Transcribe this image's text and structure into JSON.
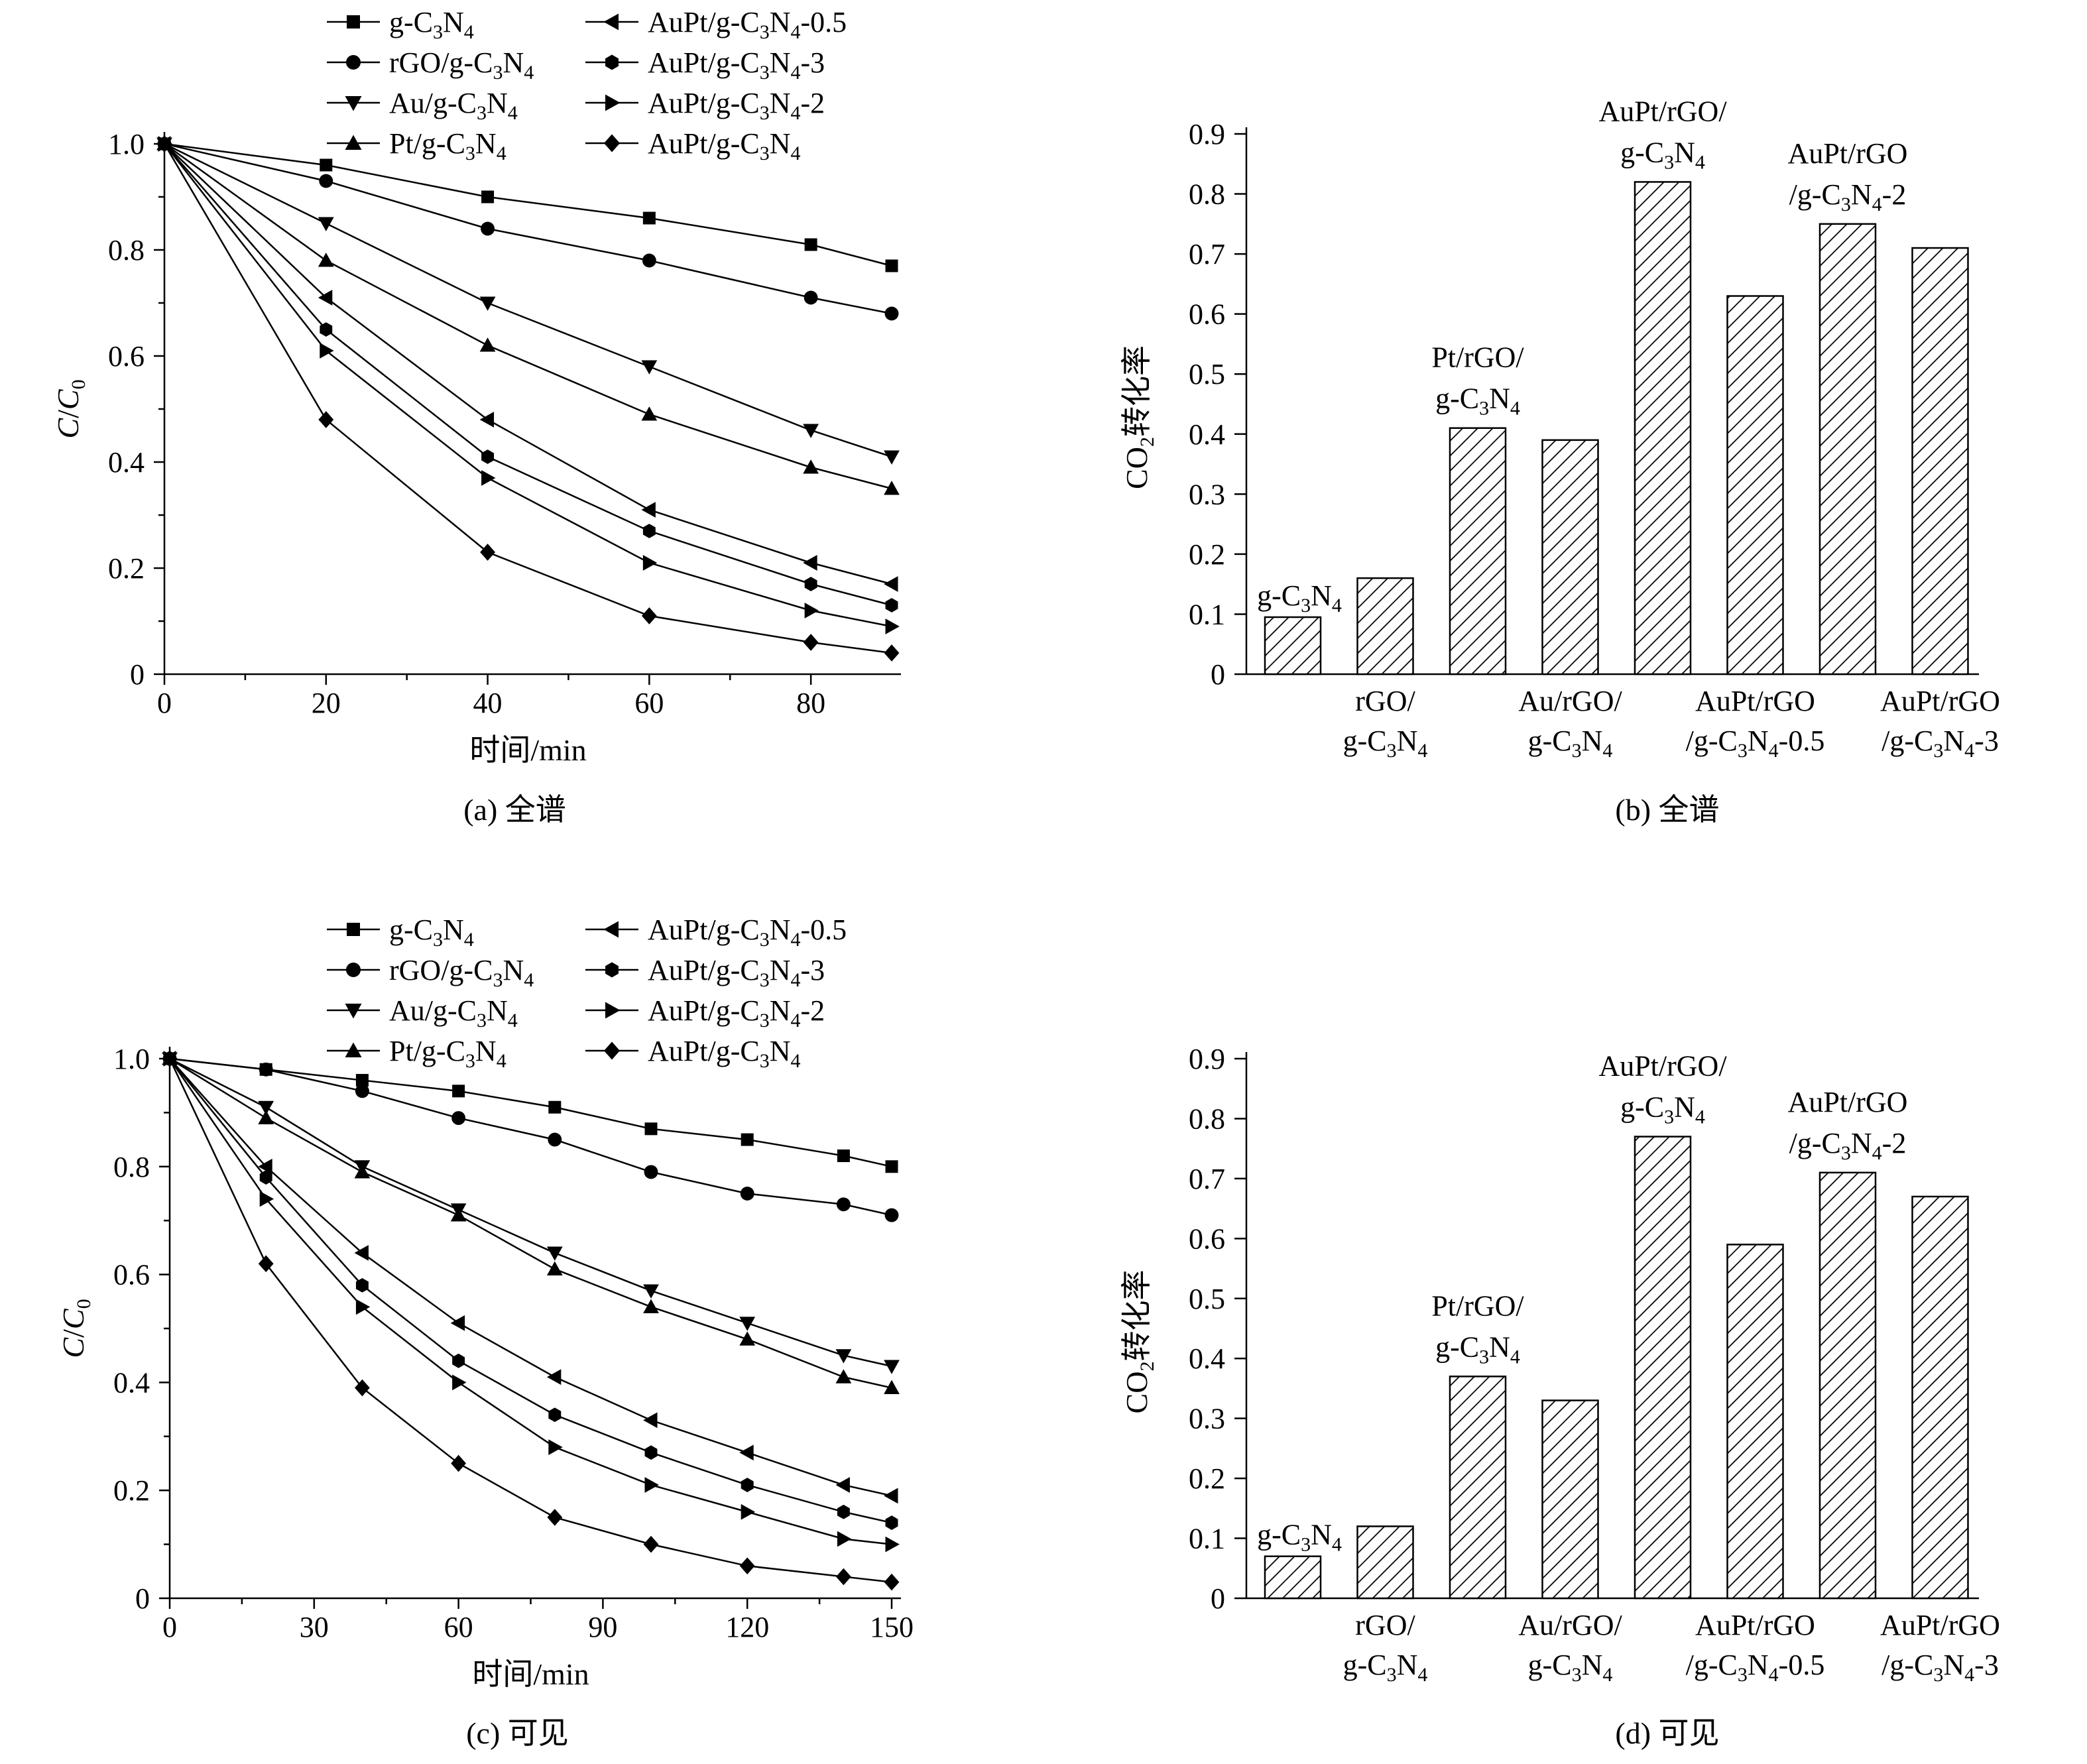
{
  "chart_data": [
    {
      "panel": "a",
      "type": "line",
      "caption": "(a) 全谱",
      "xlabel": "时间/min",
      "ylabel": "C/C0",
      "xlim": [
        0,
        90
      ],
      "ylim": [
        0,
        1.0
      ],
      "x_ticks": [
        0,
        20,
        40,
        60,
        80
      ],
      "y_ticks": [
        0,
        0.2,
        0.4,
        0.6,
        0.8,
        1.0
      ],
      "y_tick_labels": [
        "0",
        "0.2",
        "0.4",
        "0.6",
        "0.8",
        "1.0"
      ],
      "x": [
        0,
        20,
        40,
        60,
        80,
        90
      ],
      "series": [
        {
          "name": "g-C3N4",
          "marker": "square",
          "values": [
            1.0,
            0.96,
            0.9,
            0.86,
            0.81,
            0.77
          ]
        },
        {
          "name": "rGO/g-C3N4",
          "marker": "circle",
          "values": [
            1.0,
            0.93,
            0.84,
            0.78,
            0.71,
            0.68
          ]
        },
        {
          "name": "Au/g-C3N4",
          "marker": "triangle-down",
          "values": [
            1.0,
            0.85,
            0.7,
            0.58,
            0.46,
            0.41
          ]
        },
        {
          "name": "Pt/g-C3N4",
          "marker": "triangle-up",
          "values": [
            1.0,
            0.78,
            0.62,
            0.49,
            0.39,
            0.35
          ]
        },
        {
          "name": "AuPt/g-C3N4-0.5",
          "marker": "triangle-left",
          "values": [
            1.0,
            0.71,
            0.48,
            0.31,
            0.21,
            0.17
          ]
        },
        {
          "name": "AuPt/g-C3N4-3",
          "marker": "hexagon",
          "values": [
            1.0,
            0.65,
            0.41,
            0.27,
            0.17,
            0.13
          ]
        },
        {
          "name": "AuPt/g-C3N4-2",
          "marker": "triangle-right",
          "values": [
            1.0,
            0.61,
            0.37,
            0.21,
            0.12,
            0.09
          ]
        },
        {
          "name": "AuPt/g-C3N4",
          "marker": "diamond",
          "values": [
            1.0,
            0.48,
            0.23,
            0.11,
            0.06,
            0.04
          ]
        }
      ]
    },
    {
      "panel": "b",
      "type": "bar",
      "caption": "(b) 全谱",
      "ylabel": "CO2转化率",
      "ylim": [
        0,
        0.9
      ],
      "y_ticks": [
        0,
        0.1,
        0.2,
        0.3,
        0.4,
        0.5,
        0.6,
        0.7,
        0.8,
        0.9
      ],
      "y_tick_labels": [
        "0",
        "0.1",
        "0.2",
        "0.3",
        "0.4",
        "0.5",
        "0.6",
        "0.7",
        "0.8",
        "0.9"
      ],
      "categories": [
        "g-C3N4",
        "rGO/g-C3N4",
        "Pt/rGO/g-C3N4",
        "Au/rGO/g-C3N4",
        "AuPt/rGO/g-C3N4",
        "AuPt/rGO/g-C3N4-0.5",
        "AuPt/rGO/g-C3N4-2",
        "AuPt/rGO/g-C3N4-3"
      ],
      "values": [
        0.095,
        0.16,
        0.41,
        0.39,
        0.82,
        0.63,
        0.75,
        0.71
      ]
    },
    {
      "panel": "c",
      "type": "line",
      "caption": "(c) 可见",
      "xlabel": "时间/min",
      "ylabel": "C/C0",
      "xlim": [
        0,
        150
      ],
      "ylim": [
        0,
        1.0
      ],
      "x_ticks": [
        0,
        30,
        60,
        90,
        120,
        150
      ],
      "y_ticks": [
        0,
        0.2,
        0.4,
        0.6,
        0.8,
        1.0
      ],
      "y_tick_labels": [
        "0",
        "0.2",
        "0.4",
        "0.6",
        "0.8",
        "1.0"
      ],
      "x": [
        0,
        20,
        40,
        60,
        80,
        100,
        120,
        140,
        150
      ],
      "series": [
        {
          "name": "g-C3N4",
          "marker": "square",
          "values": [
            1.0,
            0.98,
            0.96,
            0.94,
            0.91,
            0.87,
            0.85,
            0.82,
            0.8
          ]
        },
        {
          "name": "rGO/g-C3N4",
          "marker": "circle",
          "values": [
            1.0,
            0.98,
            0.94,
            0.89,
            0.85,
            0.79,
            0.75,
            0.73,
            0.71
          ]
        },
        {
          "name": "Au/g-C3N4",
          "marker": "triangle-down",
          "values": [
            1.0,
            0.91,
            0.8,
            0.72,
            0.64,
            0.57,
            0.51,
            0.45,
            0.43
          ]
        },
        {
          "name": "Pt/g-C3N4",
          "marker": "triangle-up",
          "values": [
            1.0,
            0.89,
            0.79,
            0.71,
            0.61,
            0.54,
            0.48,
            0.41,
            0.39
          ]
        },
        {
          "name": "AuPt/g-C3N4-0.5",
          "marker": "triangle-left",
          "values": [
            1.0,
            0.8,
            0.64,
            0.51,
            0.41,
            0.33,
            0.27,
            0.21,
            0.19
          ]
        },
        {
          "name": "AuPt/g-C3N4-3",
          "marker": "hexagon",
          "values": [
            1.0,
            0.78,
            0.58,
            0.44,
            0.34,
            0.27,
            0.21,
            0.16,
            0.14
          ]
        },
        {
          "name": "AuPt/g-C3N4-2",
          "marker": "triangle-right",
          "values": [
            1.0,
            0.74,
            0.54,
            0.4,
            0.28,
            0.21,
            0.16,
            0.11,
            0.1
          ]
        },
        {
          "name": "AuPt/g-C3N4",
          "marker": "diamond",
          "values": [
            1.0,
            0.62,
            0.39,
            0.25,
            0.15,
            0.1,
            0.06,
            0.04,
            0.03
          ]
        }
      ]
    },
    {
      "panel": "d",
      "type": "bar",
      "caption": "(d) 可见",
      "ylabel": "CO2转化率",
      "ylim": [
        0,
        0.9
      ],
      "y_ticks": [
        0,
        0.1,
        0.2,
        0.3,
        0.4,
        0.5,
        0.6,
        0.7,
        0.8,
        0.9
      ],
      "y_tick_labels": [
        "0",
        "0.1",
        "0.2",
        "0.3",
        "0.4",
        "0.5",
        "0.6",
        "0.7",
        "0.8",
        "0.9"
      ],
      "categories": [
        "g-C3N4",
        "rGO/g-C3N4",
        "Pt/rGO/g-C3N4",
        "Au/rGO/g-C3N4",
        "AuPt/rGO/g-C3N4",
        "AuPt/rGO/g-C3N4-0.5",
        "AuPt/rGO/g-C3N4-2",
        "AuPt/rGO/g-C3N4-3"
      ],
      "values": [
        0.07,
        0.12,
        0.37,
        0.33,
        0.77,
        0.59,
        0.71,
        0.67
      ]
    }
  ]
}
